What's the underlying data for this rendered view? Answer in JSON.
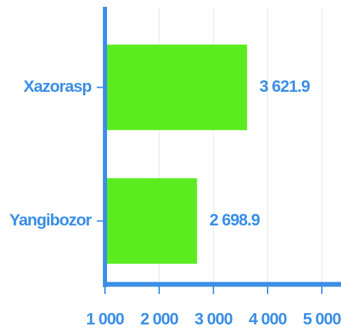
{
  "chart_data": {
    "type": "hbar",
    "categories": [
      "Xazorasp",
      "Yangibozor"
    ],
    "values": [
      3621.9,
      2698.9
    ],
    "value_labels": [
      "3 621.9",
      "2 698.9"
    ],
    "color": "#5bec1f",
    "xlim": [
      1000,
      5354
    ],
    "xticks": [
      {
        "value": 1000,
        "label": "1 000"
      },
      {
        "value": 2000,
        "label": "2 000"
      },
      {
        "value": 3000,
        "label": "3 000"
      },
      {
        "value": 4000,
        "label": "4 000"
      },
      {
        "value": 5000,
        "label": "5 000"
      }
    ],
    "grid": true
  }
}
